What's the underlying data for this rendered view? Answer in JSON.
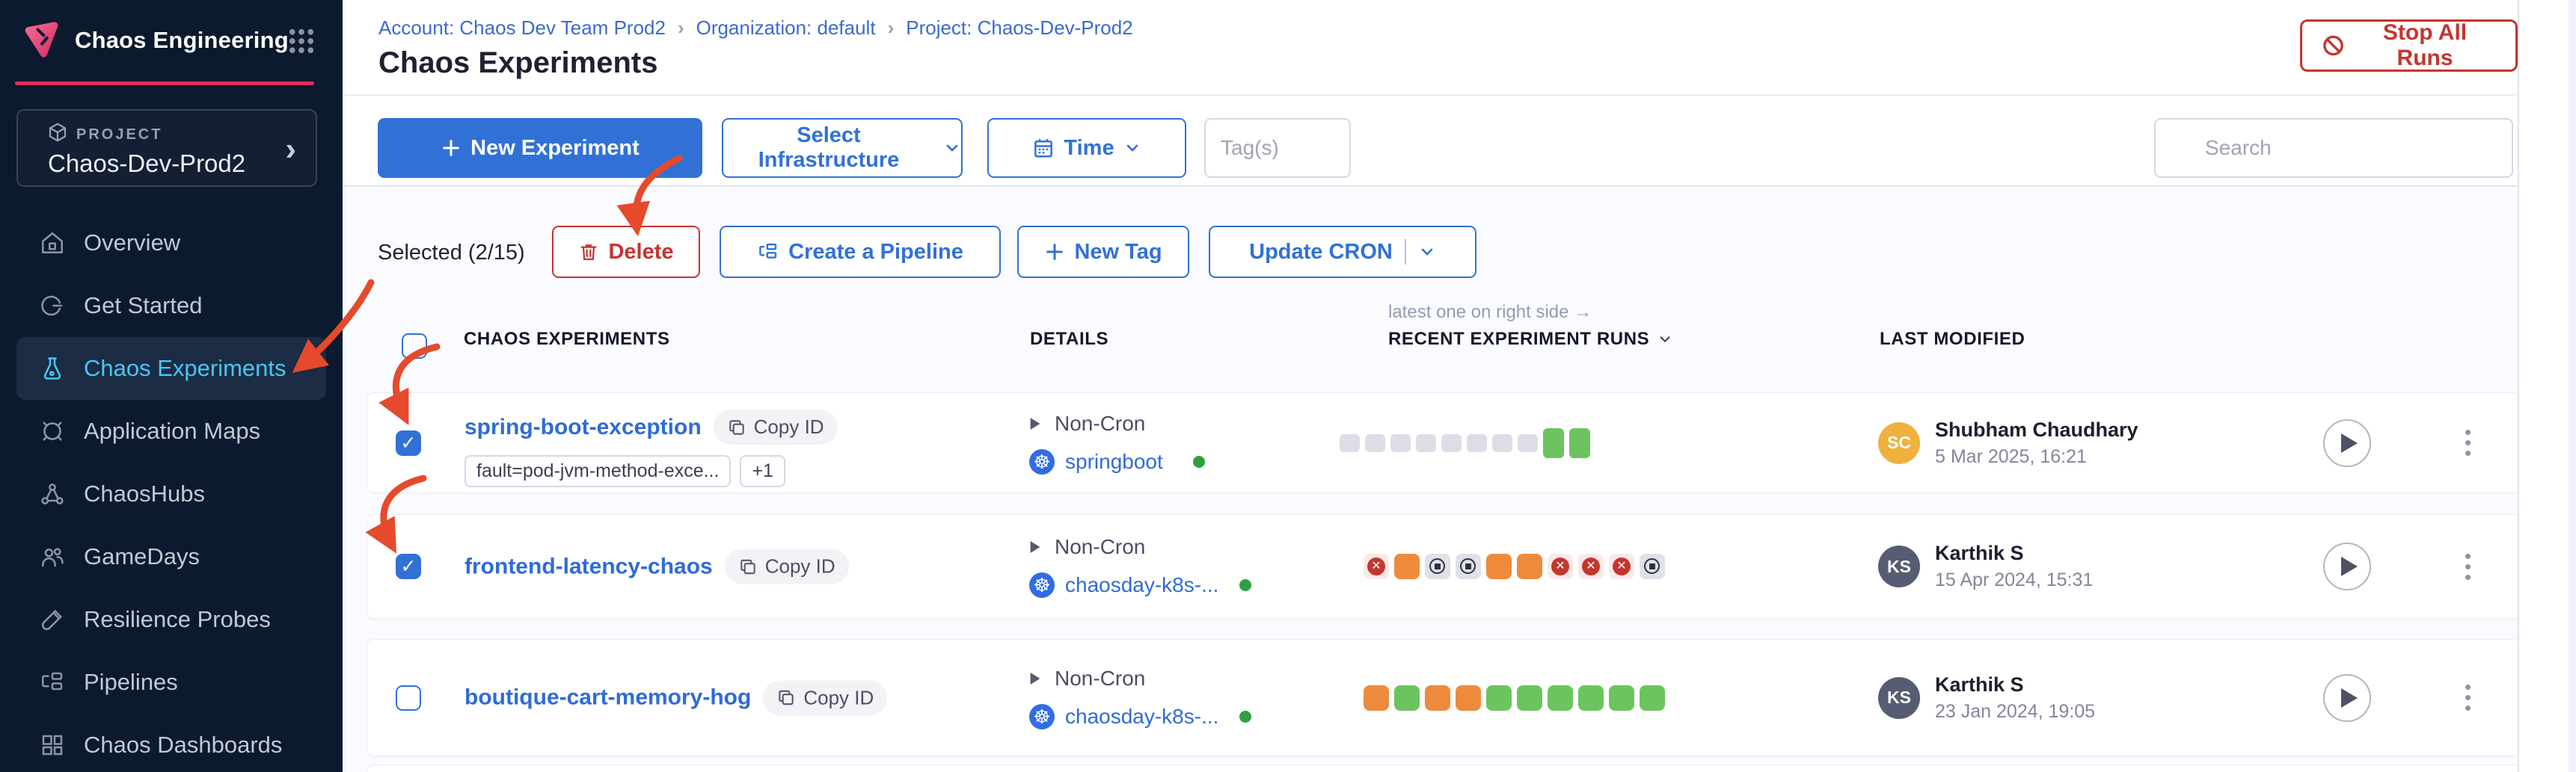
{
  "sidebar": {
    "brand": "Chaos Engineering",
    "project_label": "PROJECT",
    "project_name": "Chaos-Dev-Prod2",
    "items": [
      {
        "label": "Overview",
        "active": false
      },
      {
        "label": "Get Started",
        "active": false
      },
      {
        "label": "Chaos Experiments",
        "active": true
      },
      {
        "label": "Application Maps",
        "active": false
      },
      {
        "label": "ChaosHubs",
        "active": false
      },
      {
        "label": "GameDays",
        "active": false
      },
      {
        "label": "Resilience Probes",
        "active": false
      },
      {
        "label": "Pipelines",
        "active": false
      },
      {
        "label": "Chaos Dashboards",
        "active": false
      }
    ]
  },
  "header": {
    "breadcrumb": {
      "items": [
        "Account: Chaos Dev Team Prod2",
        "Organization: default",
        "Project: Chaos-Dev-Prod2"
      ],
      "separator": "›"
    },
    "title": "Chaos Experiments",
    "stop_all_runs": "Stop All Runs"
  },
  "toolbar": {
    "new_experiment": "New Experiment",
    "select_infrastructure": "Select Infrastructure",
    "time": "Time",
    "tags_placeholder": "Tag(s)",
    "search_placeholder": "Search"
  },
  "selection": {
    "label": "Selected (2/15)",
    "delete": "Delete",
    "create_pipeline": "Create a Pipeline",
    "new_tag": "New Tag",
    "update_cron": "Update CRON"
  },
  "table": {
    "note": "latest one on right side →",
    "headers": [
      "CHAOS EXPERIMENTS",
      "DETAILS",
      "RECENT EXPERIMENT RUNS",
      "LAST MODIFIED"
    ]
  },
  "rows": [
    {
      "name": "spring-boot-exception",
      "copy_label": "Copy ID",
      "tags": [
        "fault=pod-jvm-method-exce...",
        "+1"
      ],
      "schedule": "Non-Cron",
      "infra": "springboot",
      "checked": true,
      "runs": [
        "empty",
        "empty",
        "empty",
        "empty",
        "empty",
        "empty",
        "empty",
        "empty",
        "green_tall",
        "green_tall"
      ],
      "user": {
        "initials": "SC",
        "name": "Shubham Chaudhary",
        "date": "5 Mar 2025, 16:21",
        "color": "#efb13d"
      }
    },
    {
      "name": "frontend-latency-chaos",
      "copy_label": "Copy ID",
      "schedule": "Non-Cron",
      "infra": "chaosday-k8s-...",
      "checked": true,
      "runs": [
        "failed",
        "orange",
        "stopped",
        "stopped",
        "orange",
        "orange",
        "failed",
        "failed",
        "failed",
        "stopped"
      ],
      "user": {
        "initials": "KS",
        "name": "Karthik S",
        "date": "15 Apr 2024, 15:31",
        "color": "#565c71"
      }
    },
    {
      "name": "boutique-cart-memory-hog",
      "copy_label": "Copy ID",
      "schedule": "Non-Cron",
      "infra": "chaosday-k8s-...",
      "checked": false,
      "runs": [
        "orange",
        "green",
        "orange",
        "orange",
        "green",
        "green",
        "green",
        "green",
        "green",
        "green"
      ],
      "user": {
        "initials": "KS",
        "name": "Karthik S",
        "date": "23 Jan 2024, 19:05",
        "color": "#565c71"
      }
    }
  ],
  "colors": {
    "accent_blue": "#3171d6",
    "nav_active_blue": "#47c7f4",
    "brand_pink": "#e8275f",
    "danger_red": "#c5342e",
    "run_green": "#6cc45f",
    "run_orange": "#ee8a3c",
    "annotation_red": "#e54a2c"
  }
}
